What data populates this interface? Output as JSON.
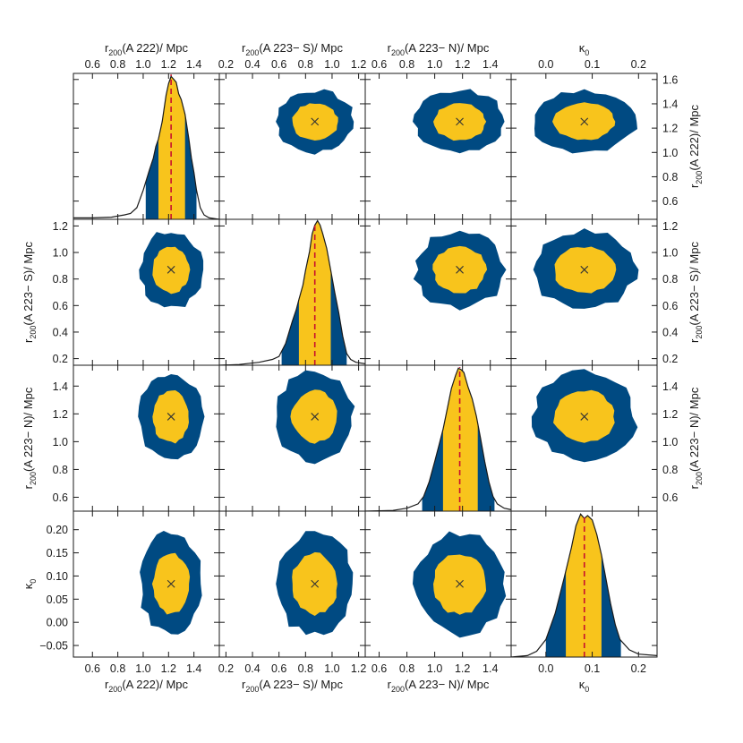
{
  "chart_data": {
    "type": "corner",
    "colors": {
      "inner": "#f8c41c",
      "outer": "#004a82",
      "median": "#c8102e",
      "curve": "#1a1a1a",
      "frame": "#1a1a1a"
    },
    "parameters": [
      {
        "id": "r200_A222",
        "label_main": "r",
        "label_sub": "200",
        "label_rest": "(A 222)/ Mpc",
        "range": [
          0.45,
          1.6
        ],
        "ticks": [
          0.6,
          0.8,
          1.0,
          1.2,
          1.4
        ],
        "tick_labels": [
          "0.6",
          "0.8",
          "1.0",
          "1.2",
          "1.4"
        ],
        "right_range": [
          0.45,
          1.65
        ],
        "right_ticks": [
          0.6,
          0.8,
          1.0,
          1.2,
          1.4,
          1.6
        ],
        "right_tick_labels": [
          "0.6",
          "0.8",
          "1.0",
          "1.2",
          "1.4",
          "1.6"
        ],
        "best": 1.22,
        "median": 1.22,
        "inner_interval": [
          1.12,
          1.33
        ],
        "outer_interval": [
          1.02,
          1.42
        ],
        "sigma": 0.1,
        "peak": 0.98,
        "marginal": [
          [
            0.45,
            0.01
          ],
          [
            0.6,
            0.01
          ],
          [
            0.75,
            0.015
          ],
          [
            0.85,
            0.03
          ],
          [
            0.9,
            0.04
          ],
          [
            0.95,
            0.08
          ],
          [
            1.0,
            0.2
          ],
          [
            1.05,
            0.34
          ],
          [
            1.08,
            0.42
          ],
          [
            1.1,
            0.5
          ],
          [
            1.12,
            0.55
          ],
          [
            1.15,
            0.67
          ],
          [
            1.18,
            0.85
          ],
          [
            1.2,
            0.93
          ],
          [
            1.22,
            0.98
          ],
          [
            1.24,
            0.96
          ],
          [
            1.26,
            0.94
          ],
          [
            1.28,
            0.86
          ],
          [
            1.3,
            0.82
          ],
          [
            1.33,
            0.72
          ],
          [
            1.36,
            0.55
          ],
          [
            1.38,
            0.42
          ],
          [
            1.4,
            0.32
          ],
          [
            1.42,
            0.2
          ],
          [
            1.45,
            0.08
          ],
          [
            1.48,
            0.03
          ],
          [
            1.52,
            0.01
          ],
          [
            1.6,
            0.0
          ]
        ]
      },
      {
        "id": "r200_A223S",
        "label_main": "r",
        "label_sub": "200",
        "label_rest": "(A 223− S)/ Mpc",
        "range": [
          0.15,
          1.25
        ],
        "ticks": [
          0.2,
          0.4,
          0.6,
          0.8,
          1.0,
          1.2
        ],
        "tick_labels": [
          "0.2",
          "0.4",
          "0.6",
          "0.8",
          "1.0",
          "1.2"
        ],
        "best": 0.87,
        "median": 0.87,
        "inner_interval": [
          0.75,
          0.99
        ],
        "outer_interval": [
          0.62,
          1.11
        ],
        "sigma": 0.12,
        "peak": 0.99,
        "marginal": [
          [
            0.15,
            0.0
          ],
          [
            0.3,
            0.005
          ],
          [
            0.45,
            0.02
          ],
          [
            0.55,
            0.04
          ],
          [
            0.6,
            0.06
          ],
          [
            0.65,
            0.15
          ],
          [
            0.7,
            0.3
          ],
          [
            0.73,
            0.38
          ],
          [
            0.75,
            0.45
          ],
          [
            0.78,
            0.55
          ],
          [
            0.8,
            0.65
          ],
          [
            0.83,
            0.78
          ],
          [
            0.85,
            0.9
          ],
          [
            0.87,
            0.96
          ],
          [
            0.89,
            0.99
          ],
          [
            0.91,
            0.96
          ],
          [
            0.93,
            0.9
          ],
          [
            0.96,
            0.8
          ],
          [
            0.99,
            0.65
          ],
          [
            1.02,
            0.5
          ],
          [
            1.05,
            0.36
          ],
          [
            1.08,
            0.2
          ],
          [
            1.11,
            0.08
          ],
          [
            1.14,
            0.04
          ],
          [
            1.18,
            0.02
          ],
          [
            1.25,
            0.01
          ]
        ]
      },
      {
        "id": "r200_A223N",
        "label_main": "r",
        "label_sub": "200",
        "label_rest": "(A 223− N)/ Mpc",
        "range": [
          0.5,
          1.55
        ],
        "ticks": [
          0.6,
          0.8,
          1.0,
          1.2,
          1.4
        ],
        "tick_labels": [
          "0.6",
          "0.8",
          "1.0",
          "1.2",
          "1.4"
        ],
        "best": 1.18,
        "median": 1.18,
        "inner_interval": [
          1.06,
          1.31
        ],
        "outer_interval": [
          0.91,
          1.43
        ],
        "sigma": 0.13,
        "peak": 0.98,
        "marginal": [
          [
            0.5,
            0.0
          ],
          [
            0.7,
            0.005
          ],
          [
            0.8,
            0.02
          ],
          [
            0.88,
            0.05
          ],
          [
            0.92,
            0.1
          ],
          [
            0.96,
            0.2
          ],
          [
            1.0,
            0.34
          ],
          [
            1.03,
            0.45
          ],
          [
            1.06,
            0.56
          ],
          [
            1.09,
            0.7
          ],
          [
            1.12,
            0.84
          ],
          [
            1.15,
            0.93
          ],
          [
            1.17,
            0.98
          ],
          [
            1.19,
            0.97
          ],
          [
            1.21,
            0.95
          ],
          [
            1.24,
            0.85
          ],
          [
            1.27,
            0.77
          ],
          [
            1.3,
            0.65
          ],
          [
            1.33,
            0.5
          ],
          [
            1.36,
            0.34
          ],
          [
            1.39,
            0.2
          ],
          [
            1.42,
            0.1
          ],
          [
            1.45,
            0.05
          ],
          [
            1.5,
            0.02
          ],
          [
            1.55,
            0.01
          ]
        ]
      },
      {
        "id": "kappa0",
        "label_main": "κ",
        "label_sub": "0",
        "label_rest": "",
        "range": [
          -0.075,
          0.24
        ],
        "ticks": [
          0.0,
          0.1,
          0.2
        ],
        "tick_labels": [
          "0.0",
          "0.1",
          "0.2"
        ],
        "left_ticks": [
          -0.05,
          0.0,
          0.05,
          0.1,
          0.15,
          0.2
        ],
        "left_tick_labels": [
          "−0.05",
          "0.00",
          "0.05",
          "0.10",
          "0.15",
          "0.20"
        ],
        "best": 0.083,
        "median": 0.083,
        "inner_interval": [
          0.043,
          0.12
        ],
        "outer_interval": [
          0.0,
          0.162
        ],
        "sigma": 0.045,
        "peak": 0.98,
        "marginal": [
          [
            -0.075,
            0.0
          ],
          [
            -0.04,
            0.01
          ],
          [
            -0.02,
            0.04
          ],
          [
            0.0,
            0.12
          ],
          [
            0.02,
            0.3
          ],
          [
            0.04,
            0.55
          ],
          [
            0.055,
            0.75
          ],
          [
            0.065,
            0.9
          ],
          [
            0.075,
            0.98
          ],
          [
            0.083,
            0.95
          ],
          [
            0.09,
            0.97
          ],
          [
            0.1,
            0.94
          ],
          [
            0.11,
            0.84
          ],
          [
            0.12,
            0.7
          ],
          [
            0.13,
            0.53
          ],
          [
            0.14,
            0.36
          ],
          [
            0.15,
            0.22
          ],
          [
            0.16,
            0.12
          ],
          [
            0.18,
            0.05
          ],
          [
            0.2,
            0.02
          ],
          [
            0.24,
            0.01
          ]
        ]
      }
    ]
  }
}
